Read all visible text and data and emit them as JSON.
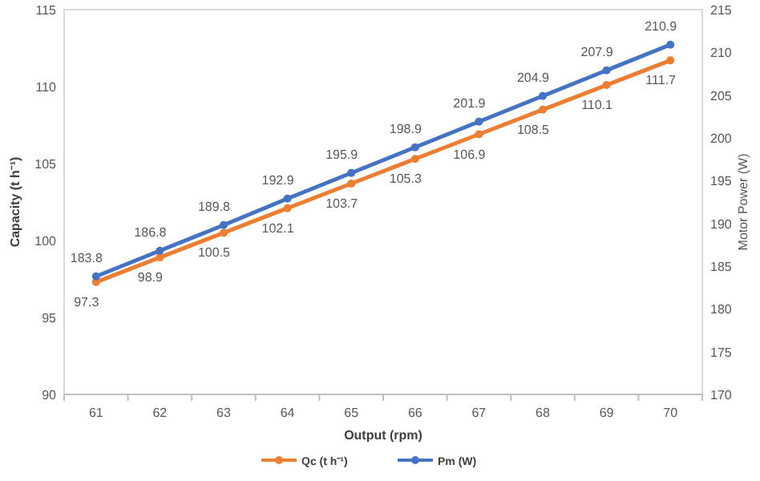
{
  "chart_data": {
    "type": "line",
    "xlabel": "Output (rpm)",
    "ylabel": "Capacity (t h⁻¹)",
    "y2label": "Motor Power (W)",
    "categories": [
      "61",
      "62",
      "63",
      "64",
      "65",
      "66",
      "67",
      "68",
      "69",
      "70"
    ],
    "series": [
      {
        "name": "Qc (t h⁻¹)",
        "color": "#ed7d31",
        "values": [
          97.3,
          98.9,
          100.5,
          102.1,
          103.7,
          105.3,
          106.9,
          108.5,
          110.1,
          111.7
        ]
      },
      {
        "name": "Pm (W)",
        "color": "#4472c4",
        "axis": "y2",
        "values": [
          183.8,
          186.8,
          189.8,
          192.9,
          195.9,
          198.9,
          201.9,
          204.9,
          207.9,
          210.9
        ]
      }
    ],
    "ylim": [
      90,
      115
    ],
    "yticks": [
      90,
      95,
      100,
      105,
      110,
      115
    ],
    "y2lim": [
      170,
      215
    ],
    "y2ticks": [
      170,
      175,
      180,
      185,
      190,
      195,
      200,
      205,
      210,
      215
    ],
    "data_labels": true,
    "legend": "bottom",
    "marker": "circle",
    "grid": false
  }
}
